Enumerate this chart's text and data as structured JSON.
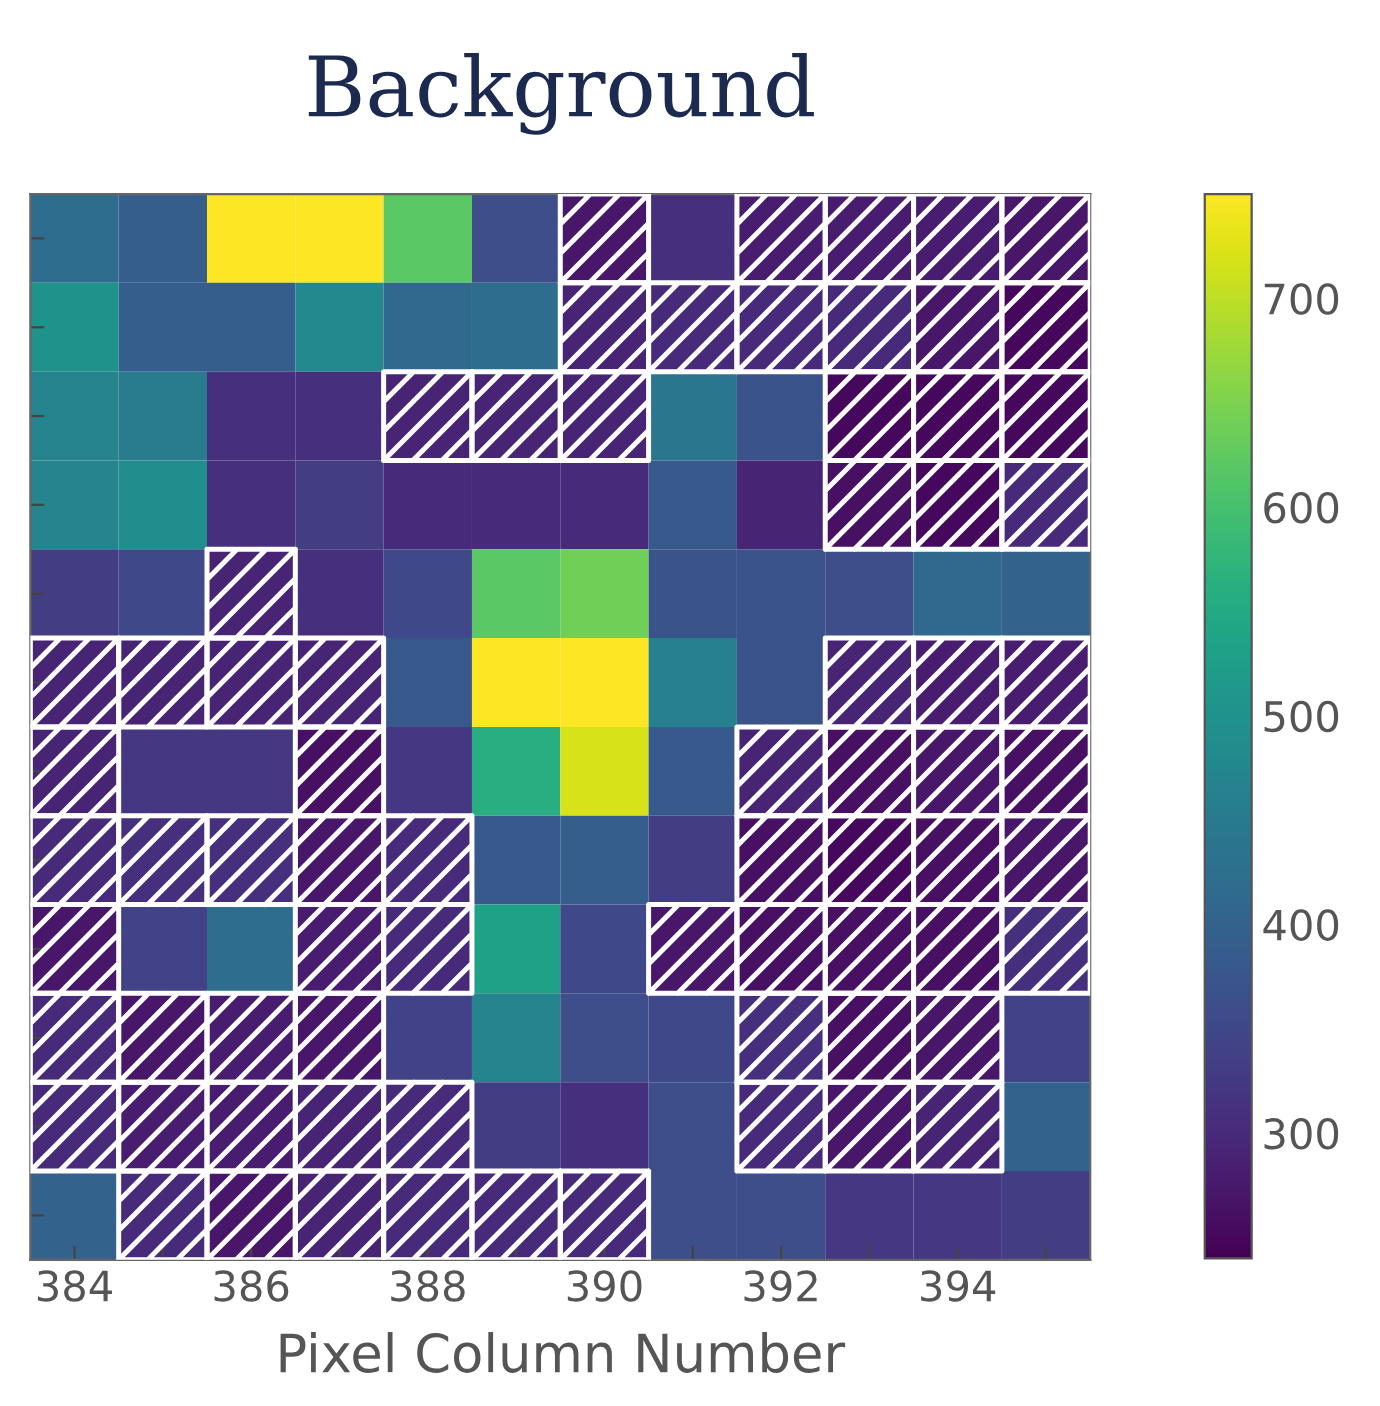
{
  "chart_data": {
    "type": "heatmap",
    "title": "Background",
    "xlabel": "Pixel Column Number",
    "categories": [
      "384",
      null,
      "386",
      null,
      "388",
      null,
      "390",
      null,
      "392",
      null,
      "394",
      null
    ],
    "y_categories": [
      null,
      null,
      null,
      null,
      null,
      null,
      null,
      null,
      null,
      null,
      null,
      null
    ],
    "cells": [
      [
        420,
        390,
        750,
        750,
        620,
        360,
        270,
        310,
        280,
        280,
        280,
        270
      ],
      [
        500,
        390,
        390,
        480,
        410,
        420,
        290,
        300,
        300,
        300,
        270,
        250
      ],
      [
        470,
        450,
        310,
        310,
        290,
        290,
        290,
        440,
        370,
        250,
        250,
        250
      ],
      [
        470,
        490,
        310,
        330,
        300,
        300,
        300,
        380,
        290,
        260,
        250,
        300
      ],
      [
        330,
        350,
        290,
        310,
        350,
        620,
        640,
        370,
        370,
        360,
        410,
        400
      ],
      [
        290,
        290,
        290,
        290,
        380,
        750,
        750,
        460,
        370,
        290,
        280,
        280
      ],
      [
        290,
        320,
        320,
        260,
        320,
        560,
        720,
        380,
        290,
        260,
        270,
        260
      ],
      [
        300,
        310,
        310,
        270,
        300,
        380,
        390,
        330,
        260,
        250,
        260,
        270
      ],
      [
        270,
        340,
        420,
        280,
        300,
        530,
        350,
        270,
        260,
        260,
        260,
        310
      ],
      [
        300,
        270,
        280,
        270,
        340,
        470,
        360,
        350,
        310,
        260,
        270,
        340
      ],
      [
        300,
        280,
        280,
        290,
        300,
        330,
        310,
        360,
        300,
        270,
        290,
        400
      ],
      [
        400,
        300,
        270,
        290,
        300,
        300,
        300,
        360,
        360,
        320,
        320,
        330
      ]
    ],
    "clim": [
      240,
      750
    ],
    "cticks": [
      300,
      400,
      500,
      600,
      700
    ],
    "tick_labels": "x"
  }
}
